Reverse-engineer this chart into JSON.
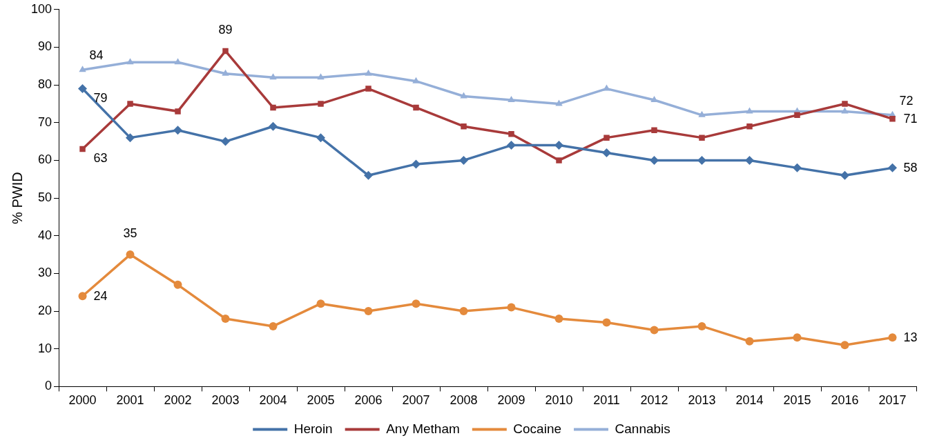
{
  "chart_data": {
    "type": "line",
    "ylabel": "% PWID",
    "categories": [
      "2000",
      "2001",
      "2002",
      "2003",
      "2004",
      "2005",
      "2006",
      "2007",
      "2008",
      "2009",
      "2010",
      "2011",
      "2012",
      "2013",
      "2014",
      "2015",
      "2016",
      "2017"
    ],
    "series": [
      {
        "name": "Heroin",
        "color": "#4472a8",
        "marker": "diamond",
        "values": [
          79,
          66,
          68,
          65,
          69,
          66,
          56,
          59,
          60,
          64,
          64,
          62,
          60,
          60,
          60,
          58,
          56,
          58
        ],
        "value_labels": [
          "79",
          null,
          null,
          null,
          null,
          null,
          null,
          null,
          null,
          null,
          null,
          null,
          null,
          null,
          null,
          null,
          null,
          "58"
        ]
      },
      {
        "name": "Any Metham",
        "color": "#a83a3a",
        "marker": "square",
        "values": [
          63,
          75,
          73,
          89,
          74,
          75,
          79,
          74,
          69,
          67,
          60,
          66,
          68,
          66,
          69,
          72,
          75,
          71
        ],
        "value_labels": [
          "63",
          null,
          null,
          "89",
          null,
          null,
          null,
          null,
          null,
          null,
          null,
          null,
          null,
          null,
          null,
          null,
          null,
          "71"
        ]
      },
      {
        "name": "Cocaine",
        "color": "#e48a3c",
        "marker": "circle",
        "values": [
          24,
          35,
          27,
          18,
          16,
          22,
          20,
          22,
          20,
          21,
          18,
          17,
          15,
          16,
          12,
          13,
          11,
          13
        ],
        "value_labels": [
          "24",
          "35",
          null,
          null,
          null,
          null,
          null,
          null,
          null,
          null,
          null,
          null,
          null,
          null,
          null,
          null,
          null,
          "13"
        ]
      },
      {
        "name": "Cannabis",
        "color": "#95afd8",
        "marker": "triangle",
        "values": [
          84,
          86,
          86,
          83,
          82,
          82,
          83,
          81,
          77,
          76,
          75,
          79,
          76,
          72,
          73,
          73,
          73,
          72
        ],
        "value_labels": [
          "84",
          null,
          null,
          null,
          null,
          null,
          null,
          null,
          null,
          null,
          null,
          null,
          null,
          null,
          null,
          null,
          null,
          "72"
        ]
      }
    ],
    "ylim": [
      0,
      100
    ],
    "yticks": [
      0,
      10,
      20,
      30,
      40,
      50,
      60,
      70,
      80,
      90,
      100
    ],
    "grid": false,
    "legend": "bottom",
    "line_style": "solid"
  }
}
